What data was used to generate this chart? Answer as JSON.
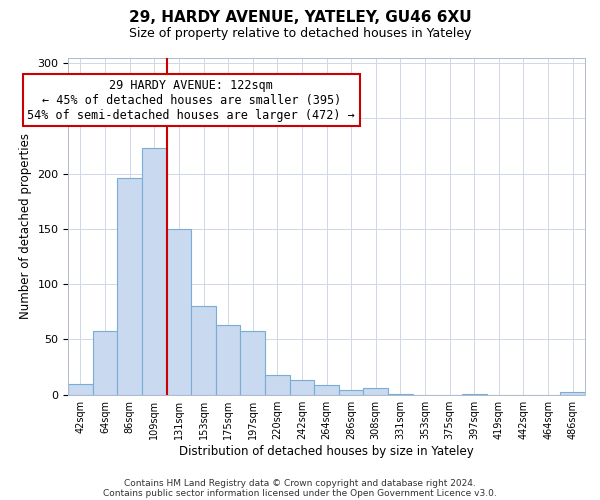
{
  "title": "29, HARDY AVENUE, YATELEY, GU46 6XU",
  "subtitle": "Size of property relative to detached houses in Yateley",
  "xlabel": "Distribution of detached houses by size in Yateley",
  "ylabel": "Number of detached properties",
  "bar_labels": [
    "42sqm",
    "64sqm",
    "86sqm",
    "109sqm",
    "131sqm",
    "153sqm",
    "175sqm",
    "197sqm",
    "220sqm",
    "242sqm",
    "264sqm",
    "286sqm",
    "308sqm",
    "331sqm",
    "353sqm",
    "375sqm",
    "397sqm",
    "419sqm",
    "442sqm",
    "464sqm",
    "486sqm"
  ],
  "bar_values": [
    10,
    58,
    196,
    223,
    150,
    80,
    63,
    58,
    18,
    13,
    9,
    4,
    6,
    1,
    0,
    0,
    1,
    0,
    0,
    0,
    2
  ],
  "bar_color": "#c8d9f0",
  "bar_edge_color": "#7aadd4",
  "vline_color": "#cc0000",
  "vline_x_idx": 3.5,
  "annotation_line1": "29 HARDY AVENUE: 122sqm",
  "annotation_line2": "← 45% of detached houses are smaller (395)",
  "annotation_line3": "54% of semi-detached houses are larger (472) →",
  "annotation_box_edge": "#cc0000",
  "ylim": [
    0,
    305
  ],
  "yticks": [
    0,
    50,
    100,
    150,
    200,
    250,
    300
  ],
  "footer1": "Contains HM Land Registry data © Crown copyright and database right 2024.",
  "footer2": "Contains public sector information licensed under the Open Government Licence v3.0.",
  "background_color": "#ffffff",
  "grid_color": "#d0d8e8"
}
